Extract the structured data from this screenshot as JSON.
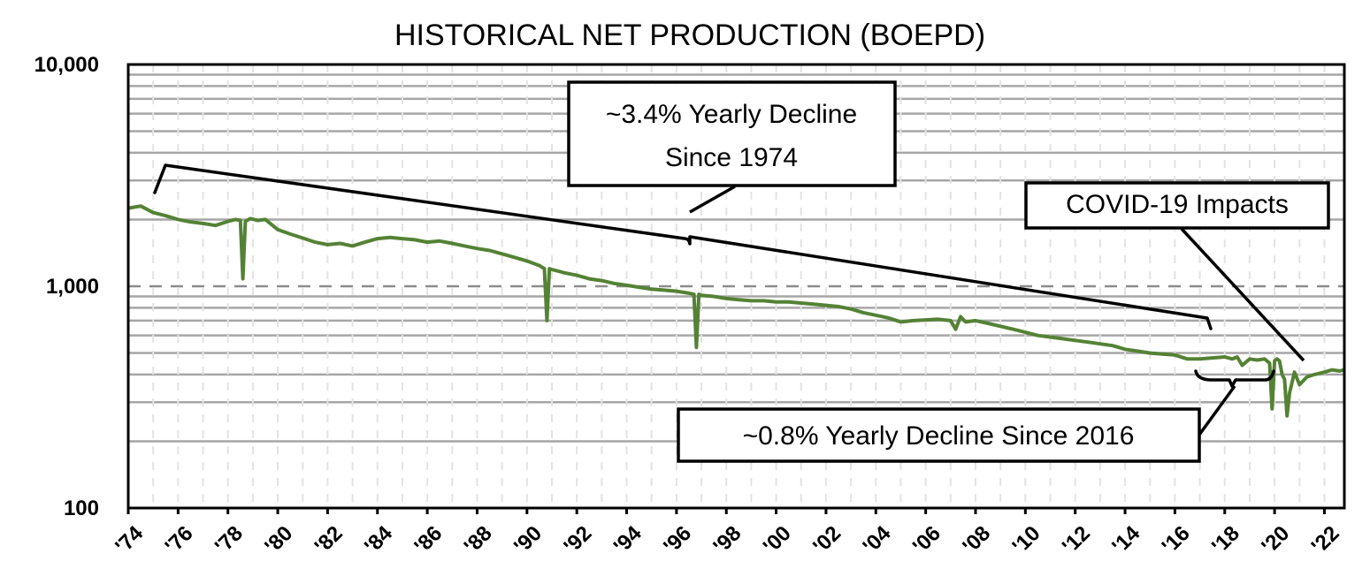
{
  "chart_data": {
    "type": "line",
    "title": "HISTORICAL NET PRODUCTION (BOEPD)",
    "xlabel": "",
    "ylabel": "",
    "y_scale": "log",
    "ylim": [
      100,
      10000
    ],
    "y_ticks": [
      100,
      1000,
      10000
    ],
    "y_tick_labels": [
      "100",
      "1,000",
      "10,000"
    ],
    "xlim": [
      1974,
      2022.8
    ],
    "x_ticks": [
      1974,
      1976,
      1978,
      1980,
      1982,
      1984,
      1986,
      1988,
      1990,
      1992,
      1994,
      1996,
      1998,
      2000,
      2002,
      2004,
      2006,
      2008,
      2010,
      2012,
      2014,
      2016,
      2018,
      2020,
      2022
    ],
    "x_tick_labels": [
      "'74",
      "'76",
      "'78",
      "'80",
      "'82",
      "'84",
      "'86",
      "'88",
      "'90",
      "'92",
      "'94",
      "'96",
      "'98",
      "'00",
      "'02",
      "'04",
      "'06",
      "'08",
      "'10",
      "'12",
      "'14",
      "'16",
      "'18",
      "'20",
      "'22"
    ],
    "grid": true,
    "legend": "none",
    "colors": {
      "series": "#548235",
      "grid": "#a6a6a6",
      "frame": "#000000"
    },
    "series": [
      {
        "x": [
          1974.0,
          1974.5,
          1975.0,
          1975.5,
          1976.0,
          1976.5,
          1977.0,
          1977.5,
          1978.0,
          1978.3,
          1978.5,
          1978.6,
          1978.7,
          1978.9,
          1979.2,
          1979.5,
          1980.0,
          1980.5,
          1981.0,
          1981.5,
          1982.0,
          1982.5,
          1983.0,
          1983.5,
          1984.0,
          1984.5,
          1985.0,
          1985.5,
          1986.0,
          1986.5,
          1987.0,
          1987.5,
          1988.0,
          1988.5,
          1989.0,
          1989.5,
          1990.0,
          1990.5,
          1990.7,
          1990.8,
          1990.9,
          1991.0,
          1991.5,
          1992.0,
          1992.5,
          1993.0,
          1993.5,
          1994.0,
          1994.5,
          1995.0,
          1995.5,
          1996.0,
          1996.5,
          1996.7,
          1996.8,
          1996.9,
          1997.0,
          1997.5,
          1998.0,
          1998.5,
          1999.0,
          1999.5,
          2000.0,
          2000.5,
          2001.0,
          2001.5,
          2002.0,
          2002.5,
          2003.0,
          2003.5,
          2004.0,
          2004.5,
          2005.0,
          2005.5,
          2006.0,
          2006.5,
          2007.0,
          2007.2,
          2007.4,
          2007.6,
          2008.0,
          2008.5,
          2009.0,
          2009.5,
          2010.0,
          2010.5,
          2011.0,
          2011.5,
          2012.0,
          2012.5,
          2013.0,
          2013.5,
          2014.0,
          2014.5,
          2015.0,
          2015.5,
          2016.0,
          2016.5,
          2017.0,
          2017.5,
          2018.0,
          2018.3,
          2018.5,
          2018.7,
          2019.0,
          2019.3,
          2019.6,
          2019.8,
          2019.9,
          2020.0,
          2020.1,
          2020.2,
          2020.3,
          2020.4,
          2020.5,
          2020.6,
          2020.8,
          2021.0,
          2021.3,
          2021.6,
          2022.0,
          2022.3,
          2022.6,
          2022.8
        ],
        "y": [
          2250,
          2300,
          2150,
          2080,
          2000,
          1950,
          1920,
          1880,
          1960,
          2000,
          1980,
          1080,
          1960,
          2020,
          1980,
          2000,
          1800,
          1720,
          1650,
          1580,
          1540,
          1560,
          1520,
          1580,
          1640,
          1660,
          1640,
          1620,
          1580,
          1600,
          1560,
          1520,
          1480,
          1450,
          1400,
          1350,
          1300,
          1240,
          1200,
          700,
          1200,
          1190,
          1150,
          1120,
          1080,
          1060,
          1030,
          1010,
          990,
          970,
          960,
          950,
          930,
          920,
          530,
          920,
          910,
          900,
          880,
          870,
          860,
          860,
          850,
          850,
          840,
          830,
          820,
          810,
          790,
          760,
          740,
          720,
          690,
          700,
          705,
          710,
          700,
          640,
          730,
          690,
          700,
          680,
          660,
          640,
          620,
          600,
          590,
          580,
          570,
          560,
          550,
          540,
          520,
          510,
          500,
          495,
          490,
          470,
          470,
          475,
          480,
          470,
          480,
          440,
          470,
          465,
          470,
          450,
          280,
          460,
          470,
          460,
          400,
          380,
          260,
          330,
          410,
          360,
          390,
          400,
          410,
          420,
          415,
          420
        ]
      }
    ],
    "annotations": [
      {
        "text_lines": [
          "~3.4% Yearly Decline",
          "Since 1974"
        ]
      },
      {
        "text_lines": [
          "COVID-19 Impacts"
        ]
      },
      {
        "text_lines": [
          "~0.8% Yearly Decline Since 2016"
        ]
      }
    ]
  }
}
